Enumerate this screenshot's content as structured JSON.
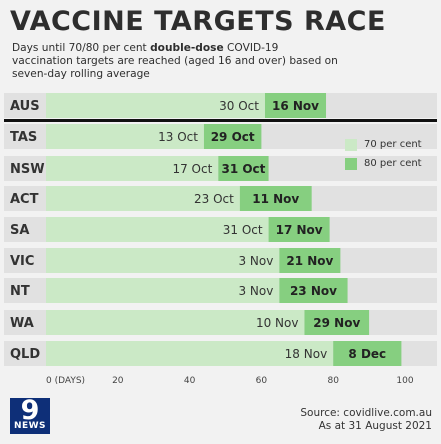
{
  "header": {
    "title": "VACCINE TARGETS RACE",
    "subtitle_part1": "Days until 70/80 per cent ",
    "subtitle_bold": "double-dose",
    "subtitle_part2": " COVID-19 vaccination targets are reached (aged 16 and over) based on seven-day rolling average"
  },
  "legend": {
    "items": [
      {
        "label": "70 per cent",
        "color": "#cbe9c6"
      },
      {
        "label": "80 per cent",
        "color": "#86cf80"
      }
    ]
  },
  "colors": {
    "bar_track": "#e1e1e1",
    "bar_70": "#cbe9c6",
    "bar_80": "#86cf80",
    "divider": "#111111"
  },
  "chart_data": {
    "type": "bar",
    "orientation": "horizontal",
    "categories": [
      "AUS",
      "TAS",
      "NSW",
      "ACT",
      "SA",
      "VIC",
      "NT",
      "WA",
      "QLD"
    ],
    "series": [
      {
        "name": "70 per cent",
        "values": [
          61,
          44,
          48,
          54,
          62,
          65,
          65,
          72,
          80
        ],
        "labels": [
          "30 Oct",
          "13 Oct",
          "17 Oct",
          "23 Oct",
          "31 Oct",
          "3 Nov",
          "3 Nov",
          "10 Nov",
          "18 Nov"
        ]
      },
      {
        "name": "80 per cent",
        "values": [
          78,
          60,
          62,
          74,
          79,
          82,
          84,
          90,
          99
        ],
        "labels": [
          "16 Nov",
          "29 Oct",
          "31 Oct",
          "11 Nov",
          "17 Nov",
          "21 Nov",
          "23 Nov",
          "29 Nov",
          "8 Dec"
        ]
      }
    ],
    "xlim": [
      0,
      100
    ],
    "x_ticks": [
      0,
      20,
      40,
      60,
      80,
      100
    ],
    "x_tick_labels": [
      "0 (DAYS)",
      "20",
      "40",
      "60",
      "80",
      "100"
    ],
    "grid": false
  },
  "footer": {
    "logo_number": "9",
    "logo_word": "NEWS",
    "source_line1": "Source: covidlive.com.au",
    "source_line2": "As at 31 August 2021"
  }
}
